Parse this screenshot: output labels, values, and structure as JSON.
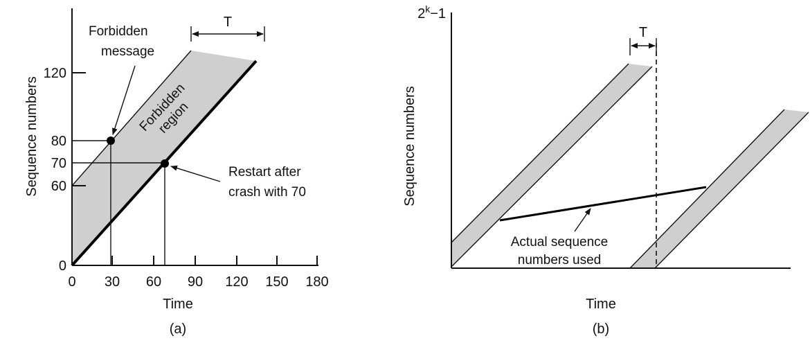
{
  "panel_a": {
    "caption": "(a)",
    "x_label": "Time",
    "y_label": "Sequence numbers",
    "x_ticks": [
      "0",
      "30",
      "60",
      "90",
      "120",
      "150",
      "180"
    ],
    "y_ticks": [
      "0",
      "60",
      "70",
      "80",
      "120"
    ],
    "period_label": "T",
    "region_label_line1": "Forbidden",
    "region_label_line2": "region",
    "forbidden_msg_line1": "Forbidden",
    "forbidden_msg_line2": "message",
    "restart_line1": "Restart after",
    "restart_line2": "crash with 70"
  },
  "panel_b": {
    "caption": "(b)",
    "x_label": "Time",
    "y_label": "Sequence numbers",
    "y_max_base": "2",
    "y_max_exp": "k",
    "y_max_tail": "−1",
    "period_label": "T",
    "actual_line1": "Actual sequence",
    "actual_line2": "numbers used"
  },
  "colors": {
    "band": "#cfcfcf",
    "ink": "#111111"
  }
}
